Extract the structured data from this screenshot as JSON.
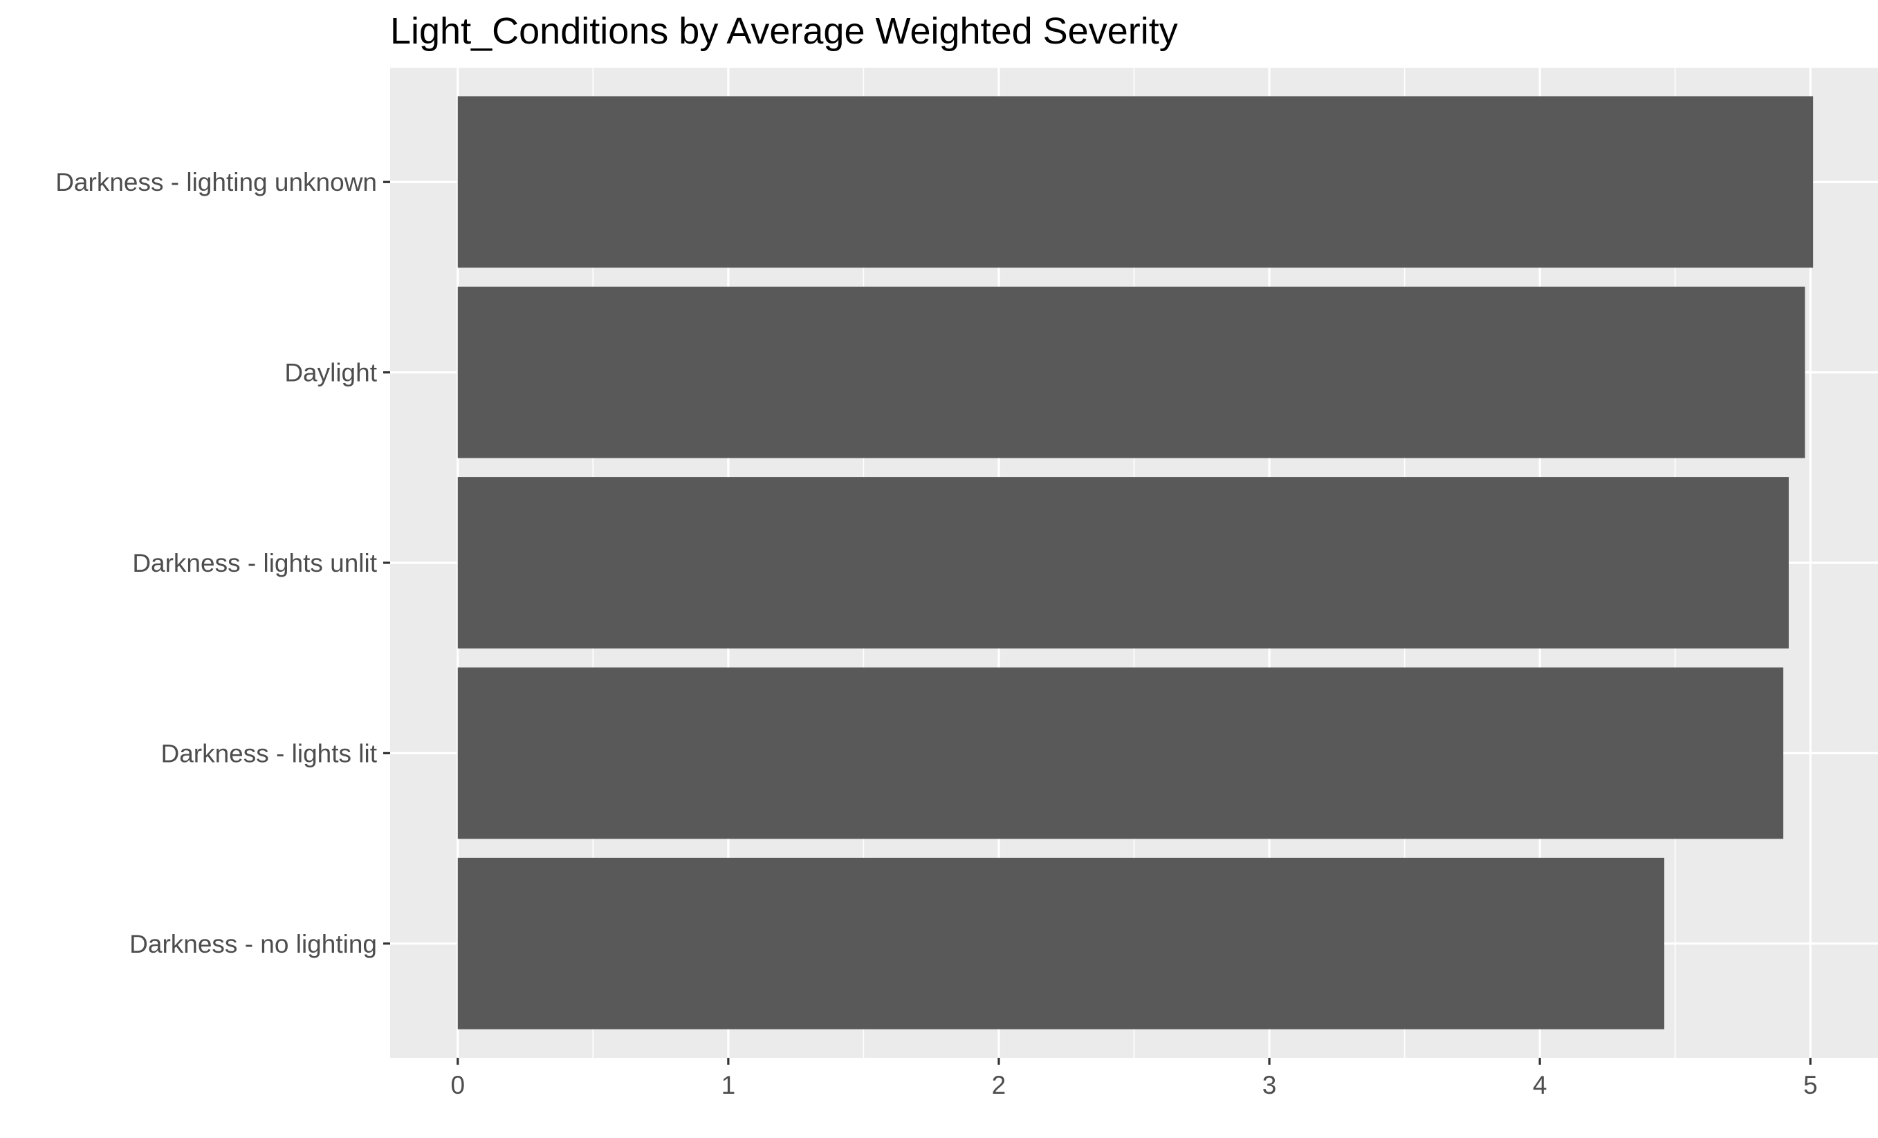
{
  "chart_data": {
    "type": "bar",
    "orientation": "horizontal",
    "title": "Light_Conditions by Average Weighted Severity",
    "xlabel": "",
    "ylabel": "",
    "categories": [
      "Darkness - lighting unknown",
      "Daylight",
      "Darkness - lights unlit",
      "Darkness - lights lit",
      "Darkness - no lighting"
    ],
    "values": [
      5.01,
      4.98,
      4.92,
      4.9,
      4.46
    ],
    "xlim": [
      -0.25,
      5.25
    ],
    "xticks": [
      "0",
      "1",
      "2",
      "3",
      "4",
      "5"
    ],
    "grid": true,
    "legend": "none",
    "colors": {
      "bar": "#595959",
      "panel": "#EBEBEB",
      "grid": "#FFFFFF",
      "tick_text": "#4D4D4D",
      "title_text": "#000000",
      "tick_mark": "#333333"
    }
  }
}
